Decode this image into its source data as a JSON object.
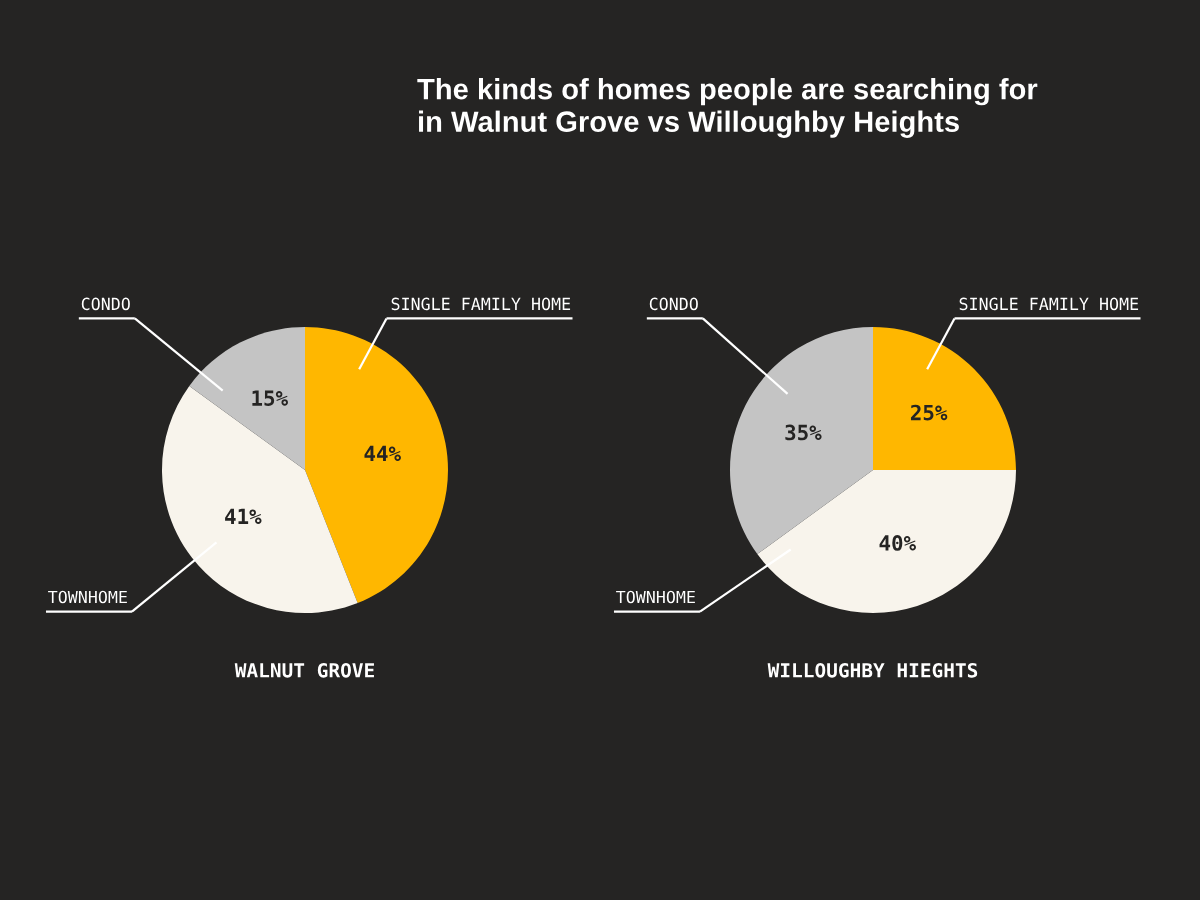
{
  "chart_data": [
    {
      "type": "other",
      "title": "The kinds of homes people are searching for\nin Walnut Grove vs Willoughby Heights"
    },
    {
      "type": "pie",
      "title": "WALNUT GROVE",
      "categories": [
        "SINGLE FAMILY HOME",
        "TOWNHOME",
        "CONDO"
      ],
      "values": [
        44,
        41,
        15
      ],
      "colors": [
        "#ffb700",
        "#f8f4ec",
        "#c4c4c4"
      ],
      "value_labels": [
        "44%",
        "41%",
        "15%"
      ]
    },
    {
      "type": "pie",
      "title": "WILLOUGHBY HIEGHTS",
      "categories": [
        "SINGLE FAMILY HOME",
        "TOWNHOME",
        "CONDO"
      ],
      "values": [
        25,
        40,
        35
      ],
      "colors": [
        "#ffb700",
        "#f8f4ec",
        "#c4c4c4"
      ],
      "value_labels": [
        "25%",
        "40%",
        "35%"
      ]
    }
  ]
}
